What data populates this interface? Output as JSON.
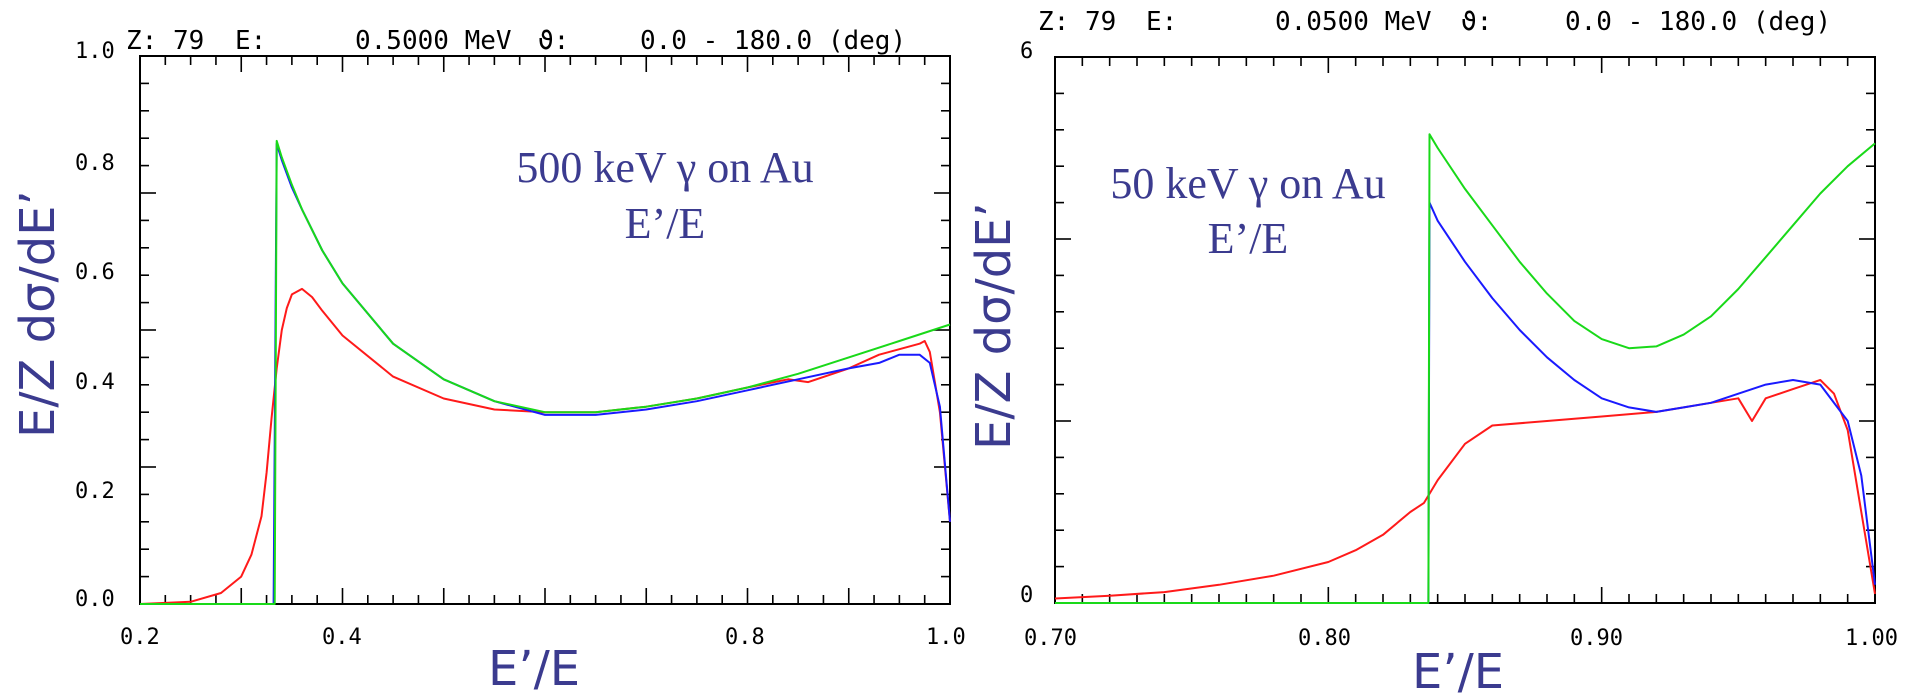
{
  "colors": {
    "red": "#ff1a1a",
    "blue": "#1a1aff",
    "green": "#19d919",
    "label": "#3b3b8f"
  },
  "chart_data": [
    {
      "type": "line",
      "header": {
        "z": "Z:  79",
        "e": "E:",
        "energy": "0.5000 MeV",
        "theta": "ϑ:",
        "range": "0.0 - 180.0 (deg)"
      },
      "annotation": [
        "500 keV γ on Au",
        "E’/E"
      ],
      "xlabel": "E’/E",
      "ylabel": "E/Z dσ/dE’",
      "xlim": [
        0.2,
        1.0
      ],
      "ylim": [
        0.0,
        1.0
      ],
      "xticks": [
        "0.2",
        "0.4",
        "0.6",
        "0.8",
        "1.0"
      ],
      "yticks": [
        "0.0",
        "0.2",
        "0.4",
        "0.6",
        "0.8",
        "1.0"
      ],
      "grid": false,
      "series": [
        {
          "color": "red",
          "x": [
            0.2,
            0.25,
            0.28,
            0.3,
            0.31,
            0.32,
            0.325,
            0.33,
            0.335,
            0.34,
            0.345,
            0.35,
            0.36,
            0.37,
            0.38,
            0.4,
            0.45,
            0.5,
            0.55,
            0.6,
            0.65,
            0.7,
            0.75,
            0.8,
            0.84,
            0.86,
            0.9,
            0.93,
            0.95,
            0.97,
            0.975,
            0.98,
            0.99,
            1.0
          ],
          "y": [
            0.0,
            0.004,
            0.02,
            0.05,
            0.09,
            0.16,
            0.24,
            0.34,
            0.43,
            0.5,
            0.54,
            0.565,
            0.575,
            0.56,
            0.535,
            0.49,
            0.415,
            0.375,
            0.355,
            0.35,
            0.35,
            0.36,
            0.375,
            0.395,
            0.41,
            0.405,
            0.43,
            0.455,
            0.465,
            0.475,
            0.48,
            0.46,
            0.35,
            0.15
          ]
        },
        {
          "color": "blue",
          "x": [
            0.2,
            0.33,
            0.332,
            0.335,
            0.34,
            0.35,
            0.36,
            0.38,
            0.4,
            0.45,
            0.5,
            0.55,
            0.6,
            0.65,
            0.7,
            0.75,
            0.8,
            0.85,
            0.9,
            0.93,
            0.95,
            0.97,
            0.98,
            0.99,
            1.0
          ],
          "y": [
            0.0,
            0.0,
            0.0,
            0.84,
            0.81,
            0.76,
            0.72,
            0.645,
            0.585,
            0.475,
            0.41,
            0.37,
            0.345,
            0.345,
            0.355,
            0.37,
            0.39,
            0.41,
            0.43,
            0.44,
            0.455,
            0.455,
            0.44,
            0.36,
            0.15
          ]
        },
        {
          "color": "green",
          "x": [
            0.2,
            0.332,
            0.333,
            0.335,
            0.34,
            0.35,
            0.36,
            0.38,
            0.4,
            0.45,
            0.5,
            0.55,
            0.6,
            0.65,
            0.7,
            0.75,
            0.8,
            0.85,
            0.9,
            0.95,
            1.0
          ],
          "y": [
            0.0,
            0.0,
            0.0,
            0.845,
            0.815,
            0.765,
            0.72,
            0.645,
            0.585,
            0.475,
            0.41,
            0.37,
            0.35,
            0.35,
            0.36,
            0.375,
            0.395,
            0.42,
            0.45,
            0.48,
            0.51
          ]
        }
      ]
    },
    {
      "type": "line",
      "header": {
        "z": "Z:  79",
        "e": "E:",
        "energy": "0.0500 MeV",
        "theta": "ϑ:",
        "range": "0.0 - 180.0 (deg)"
      },
      "annotation": [
        "50 keV γ on Au",
        "E’/E"
      ],
      "xlabel": "E’/E",
      "ylabel": "E/Z dσ/dE’",
      "xlim": [
        0.7,
        1.0
      ],
      "ylim": [
        0,
        6
      ],
      "xticks": [
        "0.70",
        "0.80",
        "0.90",
        "1.00"
      ],
      "yticks": [
        "0",
        "6"
      ],
      "grid": false,
      "series": [
        {
          "color": "red",
          "x": [
            0.7,
            0.72,
            0.74,
            0.76,
            0.78,
            0.8,
            0.81,
            0.82,
            0.83,
            0.835,
            0.84,
            0.85,
            0.86,
            0.88,
            0.9,
            0.92,
            0.93,
            0.94,
            0.95,
            0.955,
            0.96,
            0.97,
            0.98,
            0.985,
            0.99,
            0.995,
            1.0
          ],
          "y": [
            0.05,
            0.08,
            0.12,
            0.2,
            0.3,
            0.45,
            0.58,
            0.75,
            1.0,
            1.1,
            1.35,
            1.75,
            1.95,
            2.0,
            2.05,
            2.1,
            2.15,
            2.2,
            2.25,
            2.0,
            2.25,
            2.35,
            2.45,
            2.3,
            1.9,
            1.0,
            0.1
          ]
        },
        {
          "color": "blue",
          "x": [
            0.7,
            0.8366,
            0.837,
            0.84,
            0.85,
            0.86,
            0.87,
            0.88,
            0.89,
            0.9,
            0.91,
            0.92,
            0.93,
            0.94,
            0.95,
            0.96,
            0.97,
            0.98,
            0.99,
            0.995,
            1.0
          ],
          "y": [
            0.0,
            0.0,
            4.4,
            4.2,
            3.75,
            3.35,
            3.0,
            2.7,
            2.45,
            2.25,
            2.15,
            2.1,
            2.15,
            2.2,
            2.3,
            2.4,
            2.45,
            2.4,
            2.0,
            1.4,
            0.2
          ]
        },
        {
          "color": "green",
          "x": [
            0.7,
            0.8366,
            0.837,
            0.84,
            0.85,
            0.86,
            0.87,
            0.88,
            0.89,
            0.9,
            0.91,
            0.92,
            0.93,
            0.94,
            0.95,
            0.96,
            0.97,
            0.98,
            0.99,
            1.0
          ],
          "y": [
            0.0,
            0.0,
            5.15,
            5.0,
            4.55,
            4.15,
            3.75,
            3.4,
            3.1,
            2.9,
            2.8,
            2.82,
            2.95,
            3.15,
            3.45,
            3.8,
            4.15,
            4.5,
            4.8,
            5.05
          ]
        }
      ]
    }
  ]
}
